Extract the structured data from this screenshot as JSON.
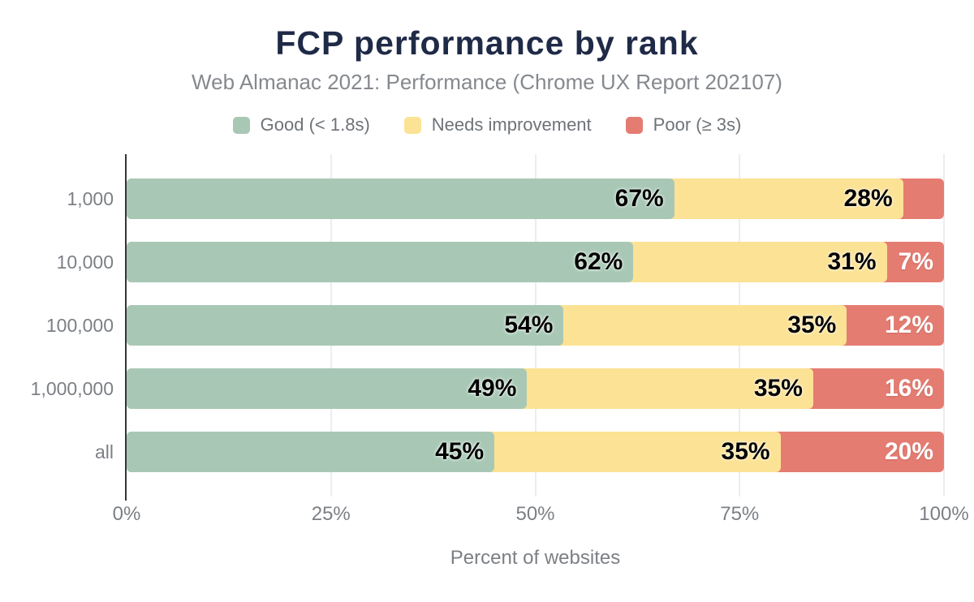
{
  "header": {
    "title": "FCP performance by rank",
    "subtitle": "Web Almanac 2021: Performance (Chrome UX Report 202107)"
  },
  "colors": {
    "title_text": "#1f2a47",
    "subtitle_text": "#85898e",
    "axis_text": "#7c8085",
    "axis_line": "#333639",
    "gridline": "#ebedee",
    "good": "#a8c8b5",
    "needs_improvement": "#fce294",
    "poor": "#e57c72"
  },
  "chart_data": {
    "type": "bar",
    "orientation": "horizontal",
    "stacked": true,
    "title": "FCP performance by rank",
    "subtitle": "Web Almanac 2021: Performance (Chrome UX Report 202107)",
    "categories": [
      "1,000",
      "10,000",
      "100,000",
      "1,000,000",
      "all"
    ],
    "series": [
      {
        "name": "Good (< 1.8s)",
        "color": "#a8c8b5",
        "label_style": "dark",
        "values": [
          67,
          62,
          54,
          49,
          45
        ],
        "labels": [
          "67%",
          "62%",
          "54%",
          "49%",
          "45%"
        ]
      },
      {
        "name": "Needs improvement",
        "color": "#fce294",
        "label_style": "dark",
        "values": [
          28,
          31,
          35,
          35,
          35
        ],
        "labels": [
          "28%",
          "31%",
          "35%",
          "35%",
          "35%"
        ]
      },
      {
        "name": "Poor (≥ 3s)",
        "color": "#e57c72",
        "label_style": "light",
        "values": [
          5,
          7,
          12,
          16,
          20
        ],
        "labels": [
          "",
          "7%",
          "12%",
          "16%",
          "20%"
        ]
      }
    ],
    "xlabel": "Percent of websites",
    "ylabel": "",
    "x_ticks": [
      "0%",
      "25%",
      "50%",
      "75%",
      "100%"
    ],
    "x_tick_values": [
      0,
      25,
      50,
      75,
      100
    ],
    "xlim": [
      0,
      100
    ],
    "legend_position": "top",
    "grid": "vertical"
  }
}
